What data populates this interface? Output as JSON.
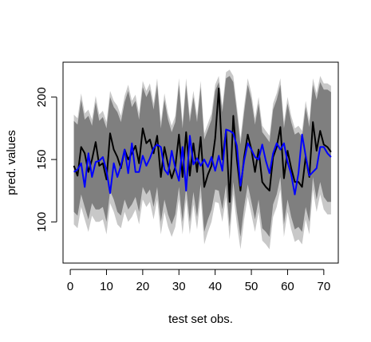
{
  "chart_data": {
    "type": "line",
    "title": "",
    "xlabel": "test set obs.",
    "ylabel": "pred. values",
    "xlim": [
      -2,
      74
    ],
    "ylim": [
      67,
      228
    ],
    "xticks": [
      0,
      10,
      20,
      30,
      40,
      50,
      60,
      70
    ],
    "yticks": [
      100,
      150,
      200
    ],
    "grid": false,
    "legend": "none",
    "colors": {
      "outer_band": "#c8c8c8",
      "inner_band": "#7f7f7f",
      "black_series": "#000000",
      "blue_series": "#0000ff"
    },
    "x": [
      1,
      2,
      3,
      4,
      5,
      6,
      7,
      8,
      9,
      10,
      11,
      12,
      13,
      14,
      15,
      16,
      17,
      18,
      19,
      20,
      21,
      22,
      23,
      24,
      25,
      26,
      27,
      28,
      29,
      30,
      31,
      32,
      33,
      34,
      35,
      36,
      37,
      38,
      39,
      40,
      41,
      42,
      43,
      44,
      45,
      46,
      47,
      48,
      49,
      50,
      51,
      52,
      53,
      54,
      55,
      56,
      57,
      58,
      59,
      60,
      61,
      62,
      63,
      64,
      65,
      66,
      67,
      68,
      69,
      70,
      71,
      72
    ],
    "series": [
      {
        "id": "black",
        "values": [
          145,
          137,
          160,
          155,
          140,
          150,
          164,
          145,
          147,
          134,
          171,
          158,
          152,
          143,
          158,
          150,
          155,
          161,
          147,
          175,
          163,
          166,
          155,
          169,
          136,
          160,
          146,
          135,
          144,
          170,
          136,
          172,
          137,
          163,
          140,
          168,
          128,
          138,
          145,
          167,
          207,
          150,
          173,
          116,
          185,
          150,
          125,
          152,
          170,
          158,
          140,
          158,
          132,
          128,
          125,
          152,
          160,
          176,
          135,
          157,
          143,
          132,
          132,
          128,
          152,
          136,
          180,
          157,
          173,
          162,
          160,
          156
        ]
      },
      {
        "id": "blue",
        "values": [
          140,
          142,
          147,
          128,
          155,
          136,
          148,
          149,
          152,
          141,
          123,
          147,
          136,
          145,
          158,
          139,
          163,
          140,
          140,
          153,
          145,
          151,
          159,
          162,
          160,
          142,
          138,
          157,
          143,
          133,
          160,
          125,
          169,
          146,
          151,
          145,
          150,
          144,
          152,
          141,
          153,
          141,
          174,
          173,
          171,
          161,
          129,
          149,
          163,
          158,
          152,
          150,
          162,
          149,
          139,
          155,
          163,
          158,
          163,
          148,
          138,
          122,
          139,
          170,
          153,
          137,
          140,
          143,
          160,
          160,
          155,
          152
        ]
      },
      {
        "id": "inner_band_upper",
        "values": [
          181,
          178,
          198,
          182,
          185,
          177,
          196,
          181,
          184,
          175,
          200,
          192,
          188,
          180,
          196,
          205,
          192,
          197,
          182,
          208,
          200,
          206,
          190,
          210,
          175,
          198,
          182,
          172,
          180,
          210,
          175,
          210,
          180,
          200,
          180,
          208,
          166,
          174,
          182,
          205,
          212,
          188,
          215,
          217,
          212,
          188,
          162,
          188,
          210,
          198,
          178,
          195,
          172,
          168,
          164,
          190,
          198,
          210,
          175,
          195,
          180,
          170,
          172,
          168,
          192,
          176,
          210,
          198,
          212,
          206,
          206,
          204
        ]
      },
      {
        "id": "inner_band_lower",
        "values": [
          108,
          105,
          122,
          112,
          102,
          115,
          110,
          110,
          112,
          100,
          125,
          118,
          108,
          105,
          118,
          110,
          114,
          120,
          108,
          128,
          122,
          126,
          112,
          128,
          100,
          118,
          106,
          98,
          106,
          128,
          100,
          128,
          100,
          124,
          104,
          130,
          92,
          102,
          110,
          126,
          125,
          110,
          130,
          96,
          132,
          108,
          88,
          112,
          130,
          116,
          102,
          118,
          95,
          92,
          88,
          114,
          122,
          136,
          98,
          118,
          104,
          94,
          96,
          92,
          112,
          100,
          136,
          118,
          132,
          120,
          116,
          116
        ]
      },
      {
        "id": "outer_band_upper",
        "values": [
          186,
          183,
          203,
          187,
          190,
          182,
          201,
          186,
          189,
          180,
          205,
          197,
          193,
          185,
          201,
          210,
          197,
          202,
          187,
          213,
          205,
          211,
          195,
          215,
          180,
          203,
          187,
          177,
          185,
          215,
          180,
          215,
          185,
          205,
          185,
          213,
          171,
          179,
          187,
          210,
          217,
          193,
          220,
          222,
          217,
          193,
          167,
          193,
          215,
          203,
          183,
          200,
          177,
          173,
          169,
          195,
          203,
          215,
          180,
          200,
          185,
          175,
          177,
          173,
          197,
          181,
          215,
          203,
          217,
          211,
          211,
          209
        ]
      },
      {
        "id": "outer_band_lower",
        "values": [
          98,
          95,
          112,
          102,
          92,
          105,
          100,
          100,
          102,
          90,
          115,
          108,
          98,
          95,
          108,
          100,
          104,
          110,
          98,
          118,
          112,
          116,
          102,
          118,
          90,
          108,
          96,
          88,
          96,
          118,
          90,
          118,
          90,
          114,
          94,
          120,
          82,
          92,
          100,
          116,
          115,
          100,
          120,
          86,
          122,
          98,
          78,
          102,
          120,
          106,
          92,
          108,
          85,
          82,
          78,
          104,
          112,
          126,
          88,
          108,
          94,
          84,
          86,
          82,
          102,
          90,
          126,
          108,
          122,
          110,
          106,
          106
        ]
      }
    ]
  }
}
